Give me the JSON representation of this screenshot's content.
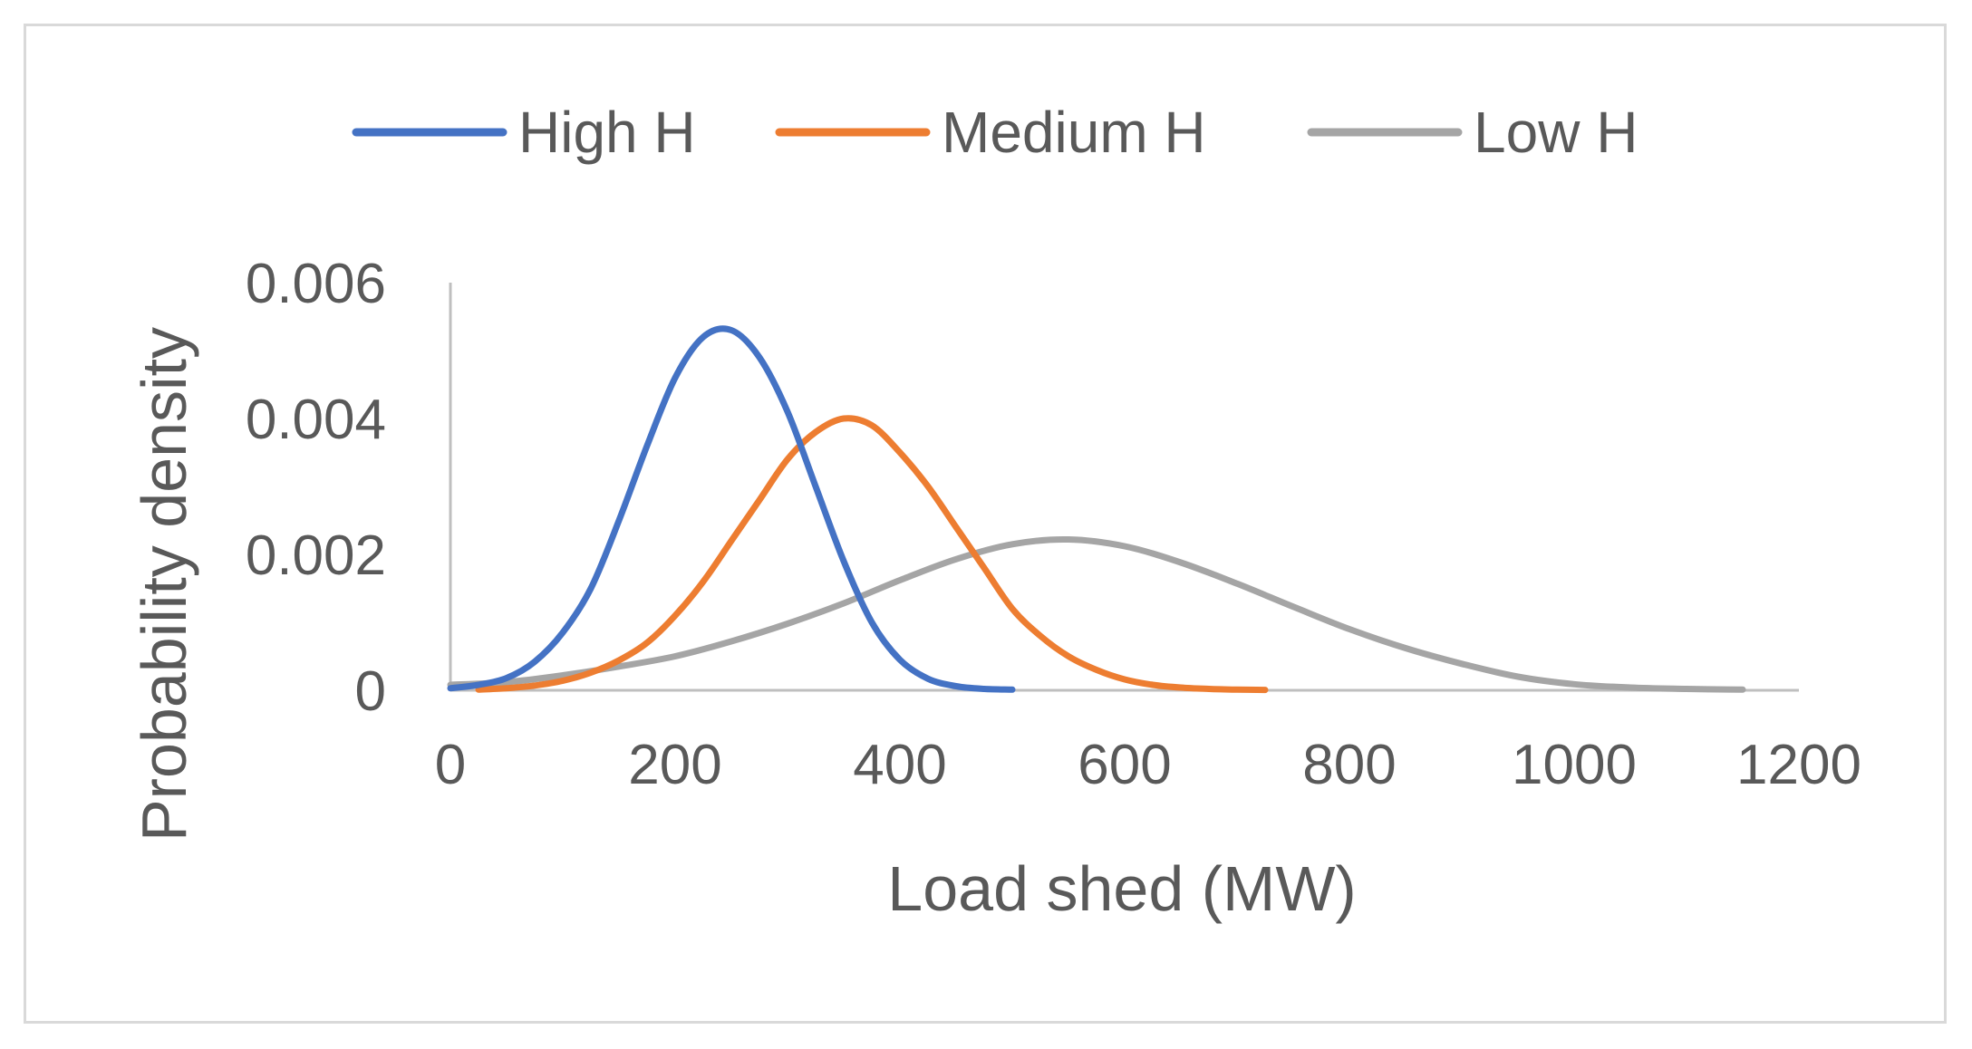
{
  "chart_data": {
    "type": "line",
    "title": "",
    "xlabel": "Load shed (MW)",
    "ylabel": "Probability density",
    "xlim": [
      0,
      1200
    ],
    "ylim": [
      0,
      0.006
    ],
    "x_ticks": [
      "0",
      "200",
      "400",
      "600",
      "800",
      "1000",
      "1200"
    ],
    "y_ticks": [
      "0",
      "0.002",
      "0.004",
      "0.006"
    ],
    "legend_position": "top",
    "grid": false,
    "series": [
      {
        "name": "High H",
        "color": "#4472c4",
        "x": [
          0,
          25,
          50,
          75,
          100,
          125,
          150,
          175,
          200,
          225,
          250,
          275,
          300,
          325,
          350,
          375,
          400,
          425,
          450,
          475,
          500
        ],
        "y": [
          3e-05,
          8e-05,
          0.00018,
          0.00042,
          0.00085,
          0.0015,
          0.0025,
          0.0036,
          0.0046,
          0.0052,
          0.0053,
          0.0049,
          0.0041,
          0.003,
          0.0019,
          0.001,
          0.00045,
          0.00017,
          6e-05,
          2e-05,
          1e-05
        ]
      },
      {
        "name": "Medium H",
        "color": "#ed7d31",
        "x": [
          25,
          50,
          75,
          100,
          125,
          150,
          175,
          200,
          225,
          250,
          275,
          300,
          325,
          350,
          375,
          400,
          425,
          450,
          475,
          500,
          525,
          550,
          575,
          600,
          625,
          650,
          675,
          700,
          725
        ],
        "y": [
          1e-05,
          3e-05,
          7e-05,
          0.00014,
          0.00026,
          0.00044,
          0.0007,
          0.0011,
          0.0016,
          0.0022,
          0.0028,
          0.0034,
          0.0038,
          0.004,
          0.0039,
          0.0035,
          0.003,
          0.0024,
          0.0018,
          0.0012,
          0.0008,
          0.0005,
          0.0003,
          0.00016,
          8e-05,
          4e-05,
          2e-05,
          1e-05,
          5e-06
        ]
      },
      {
        "name": "Low H",
        "color": "#a5a5a5",
        "x": [
          0,
          50,
          100,
          150,
          200,
          250,
          300,
          350,
          400,
          450,
          500,
          550,
          600,
          650,
          700,
          750,
          800,
          850,
          900,
          950,
          1000,
          1050,
          1100,
          1150
        ],
        "y": [
          8e-05,
          0.00012,
          0.00022,
          0.00035,
          0.0005,
          0.00072,
          0.00098,
          0.00128,
          0.00162,
          0.00193,
          0.00215,
          0.00222,
          0.00212,
          0.00188,
          0.00157,
          0.00123,
          0.0009,
          0.00062,
          0.00039,
          0.0002,
          9e-05,
          4e-05,
          2e-05,
          1e-05
        ]
      }
    ]
  }
}
